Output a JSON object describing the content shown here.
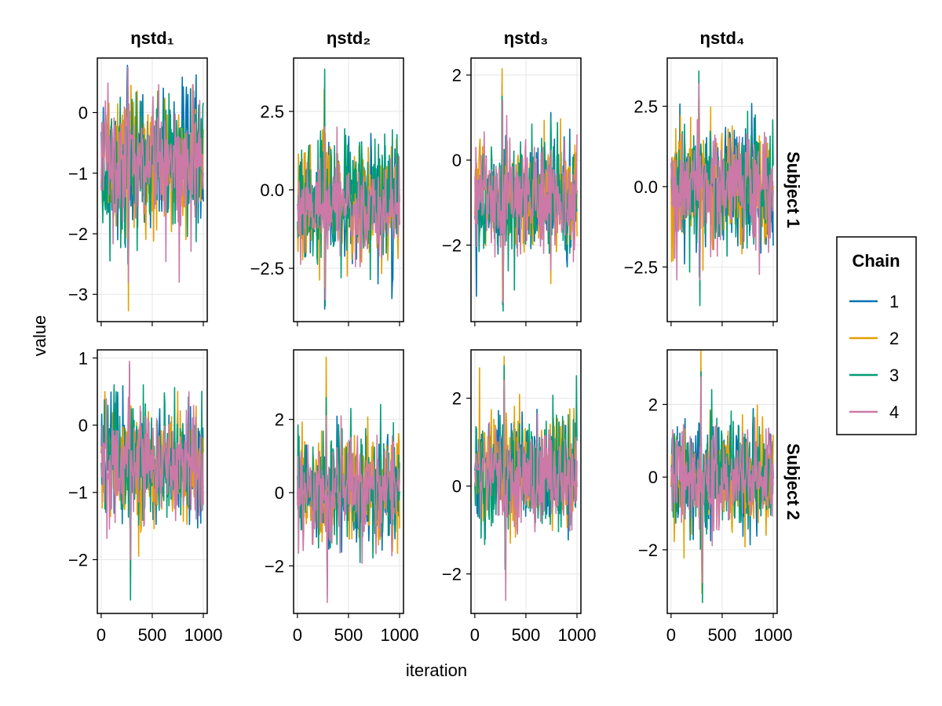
{
  "chart_data": {
    "type": "line",
    "xlabel": "iteration",
    "ylabel": "value",
    "columns": [
      "ηstd₁",
      "ηstd₂",
      "ηstd₃",
      "ηstd₄"
    ],
    "rows": [
      "Subject 1",
      "Subject 2"
    ],
    "x_range": [
      1,
      1000
    ],
    "x_ticks": [
      0,
      500,
      1000
    ],
    "legend": {
      "title": "Chain",
      "placement": "right",
      "entries": [
        {
          "name": "1",
          "color": "#0072B2"
        },
        {
          "name": "2",
          "color": "#E69F00"
        },
        {
          "name": "3",
          "color": "#009E73"
        },
        {
          "name": "4",
          "color": "#CC79A7"
        }
      ]
    },
    "panels": [
      {
        "row": 0,
        "col": 0,
        "ylim": [
          -3.45,
          0.9
        ],
        "yticks": [
          0,
          -1,
          -2,
          -3
        ],
        "tick_labels": [
          "0",
          "−1",
          "−2",
          "−3"
        ],
        "chains": [
          {
            "mean": -0.85,
            "spread": 1.0,
            "min": -2.5,
            "max": 0.78
          },
          {
            "mean": -0.85,
            "spread": 1.0,
            "min": -3.27,
            "max": 0.45
          },
          {
            "mean": -0.85,
            "spread": 1.0,
            "min": -2.45,
            "max": 0.35
          },
          {
            "mean": -0.85,
            "spread": 1.0,
            "min": -2.8,
            "max": 0.75
          }
        ]
      },
      {
        "row": 0,
        "col": 1,
        "ylim": [
          -4.2,
          4.2
        ],
        "yticks": [
          2.5,
          0.0,
          -2.5
        ],
        "tick_labels": [
          "2.5",
          "0.0",
          "−2.5"
        ],
        "chains": [
          {
            "mean": -0.6,
            "spread": 1.6,
            "min": -3.8,
            "max": 1.8
          },
          {
            "mean": -0.5,
            "spread": 1.6,
            "min": -3.1,
            "max": 3.2
          },
          {
            "mean": -0.3,
            "spread": 1.8,
            "min": -3.7,
            "max": 3.85
          },
          {
            "mean": -0.6,
            "spread": 1.5,
            "min": -3.5,
            "max": 2.0
          }
        ]
      },
      {
        "row": 0,
        "col": 2,
        "ylim": [
          -3.8,
          2.4
        ],
        "yticks": [
          2,
          0,
          -2
        ],
        "tick_labels": [
          "2",
          "0",
          "−2"
        ],
        "chains": [
          {
            "mean": -0.9,
            "spread": 1.2,
            "min": -3.4,
            "max": 1.8
          },
          {
            "mean": -0.9,
            "spread": 1.2,
            "min": -3.3,
            "max": 2.15
          },
          {
            "mean": -0.9,
            "spread": 1.2,
            "min": -3.55,
            "max": 1.5
          },
          {
            "mean": -0.9,
            "spread": 1.2,
            "min": -3.35,
            "max": 1.4
          }
        ]
      },
      {
        "row": 0,
        "col": 3,
        "ylim": [
          -4.2,
          4.0
        ],
        "yticks": [
          2.5,
          0.0,
          -2.5
        ],
        "tick_labels": [
          "2.5",
          "0.0",
          "−2.5"
        ],
        "chains": [
          {
            "mean": 0.0,
            "spread": 1.6,
            "min": -2.8,
            "max": 2.7
          },
          {
            "mean": 0.0,
            "spread": 1.6,
            "min": -3.3,
            "max": 2.8
          },
          {
            "mean": 0.0,
            "spread": 1.8,
            "min": -3.7,
            "max": 3.6
          },
          {
            "mean": 0.0,
            "spread": 1.6,
            "min": -2.9,
            "max": 3.2
          }
        ]
      },
      {
        "row": 1,
        "col": 0,
        "ylim": [
          -2.8,
          1.12
        ],
        "yticks": [
          1,
          0,
          -1,
          -2
        ],
        "tick_labels": [
          "1",
          "0",
          "−1",
          "−2"
        ],
        "chains": [
          {
            "mean": -0.55,
            "spread": 0.75,
            "min": -1.8,
            "max": 0.9
          },
          {
            "mean": -0.6,
            "spread": 0.75,
            "min": -2.25,
            "max": 0.5
          },
          {
            "mean": -0.65,
            "spread": 0.8,
            "min": -2.6,
            "max": 0.6
          },
          {
            "mean": -0.55,
            "spread": 0.75,
            "min": -2.0,
            "max": 0.95
          }
        ]
      },
      {
        "row": 1,
        "col": 1,
        "ylim": [
          -3.3,
          3.9
        ],
        "yticks": [
          2,
          0,
          -2
        ],
        "tick_labels": [
          "2",
          "0",
          "−2"
        ],
        "chains": [
          {
            "mean": 0.0,
            "spread": 1.3,
            "min": -2.4,
            "max": 2.2
          },
          {
            "mean": 0.1,
            "spread": 1.3,
            "min": -2.8,
            "max": 3.7
          },
          {
            "mean": 0.2,
            "spread": 1.4,
            "min": -2.6,
            "max": 2.6
          },
          {
            "mean": 0.0,
            "spread": 1.3,
            "min": -3.0,
            "max": 2.1
          }
        ]
      },
      {
        "row": 1,
        "col": 2,
        "ylim": [
          -2.9,
          3.1
        ],
        "yticks": [
          2,
          0,
          -2
        ],
        "tick_labels": [
          "2",
          "0",
          "−2"
        ],
        "chains": [
          {
            "mean": 0.3,
            "spread": 1.1,
            "min": -1.8,
            "max": 2.2
          },
          {
            "mean": 0.3,
            "spread": 1.1,
            "min": -1.9,
            "max": 2.95
          },
          {
            "mean": 0.35,
            "spread": 1.2,
            "min": -1.9,
            "max": 2.75
          },
          {
            "mean": 0.25,
            "spread": 1.1,
            "min": -2.6,
            "max": 2.4
          }
        ]
      },
      {
        "row": 1,
        "col": 3,
        "ylim": [
          -3.75,
          3.5
        ],
        "yticks": [
          2,
          0,
          -2
        ],
        "tick_labels": [
          "2",
          "0",
          "−2"
        ],
        "chains": [
          {
            "mean": 0.05,
            "spread": 1.3,
            "min": -2.6,
            "max": 3.0
          },
          {
            "mean": 0.0,
            "spread": 1.3,
            "min": -3.2,
            "max": 3.5
          },
          {
            "mean": 0.05,
            "spread": 1.4,
            "min": -3.45,
            "max": 2.9
          },
          {
            "mean": 0.0,
            "spread": 1.3,
            "min": -2.9,
            "max": 2.75
          }
        ]
      }
    ]
  }
}
